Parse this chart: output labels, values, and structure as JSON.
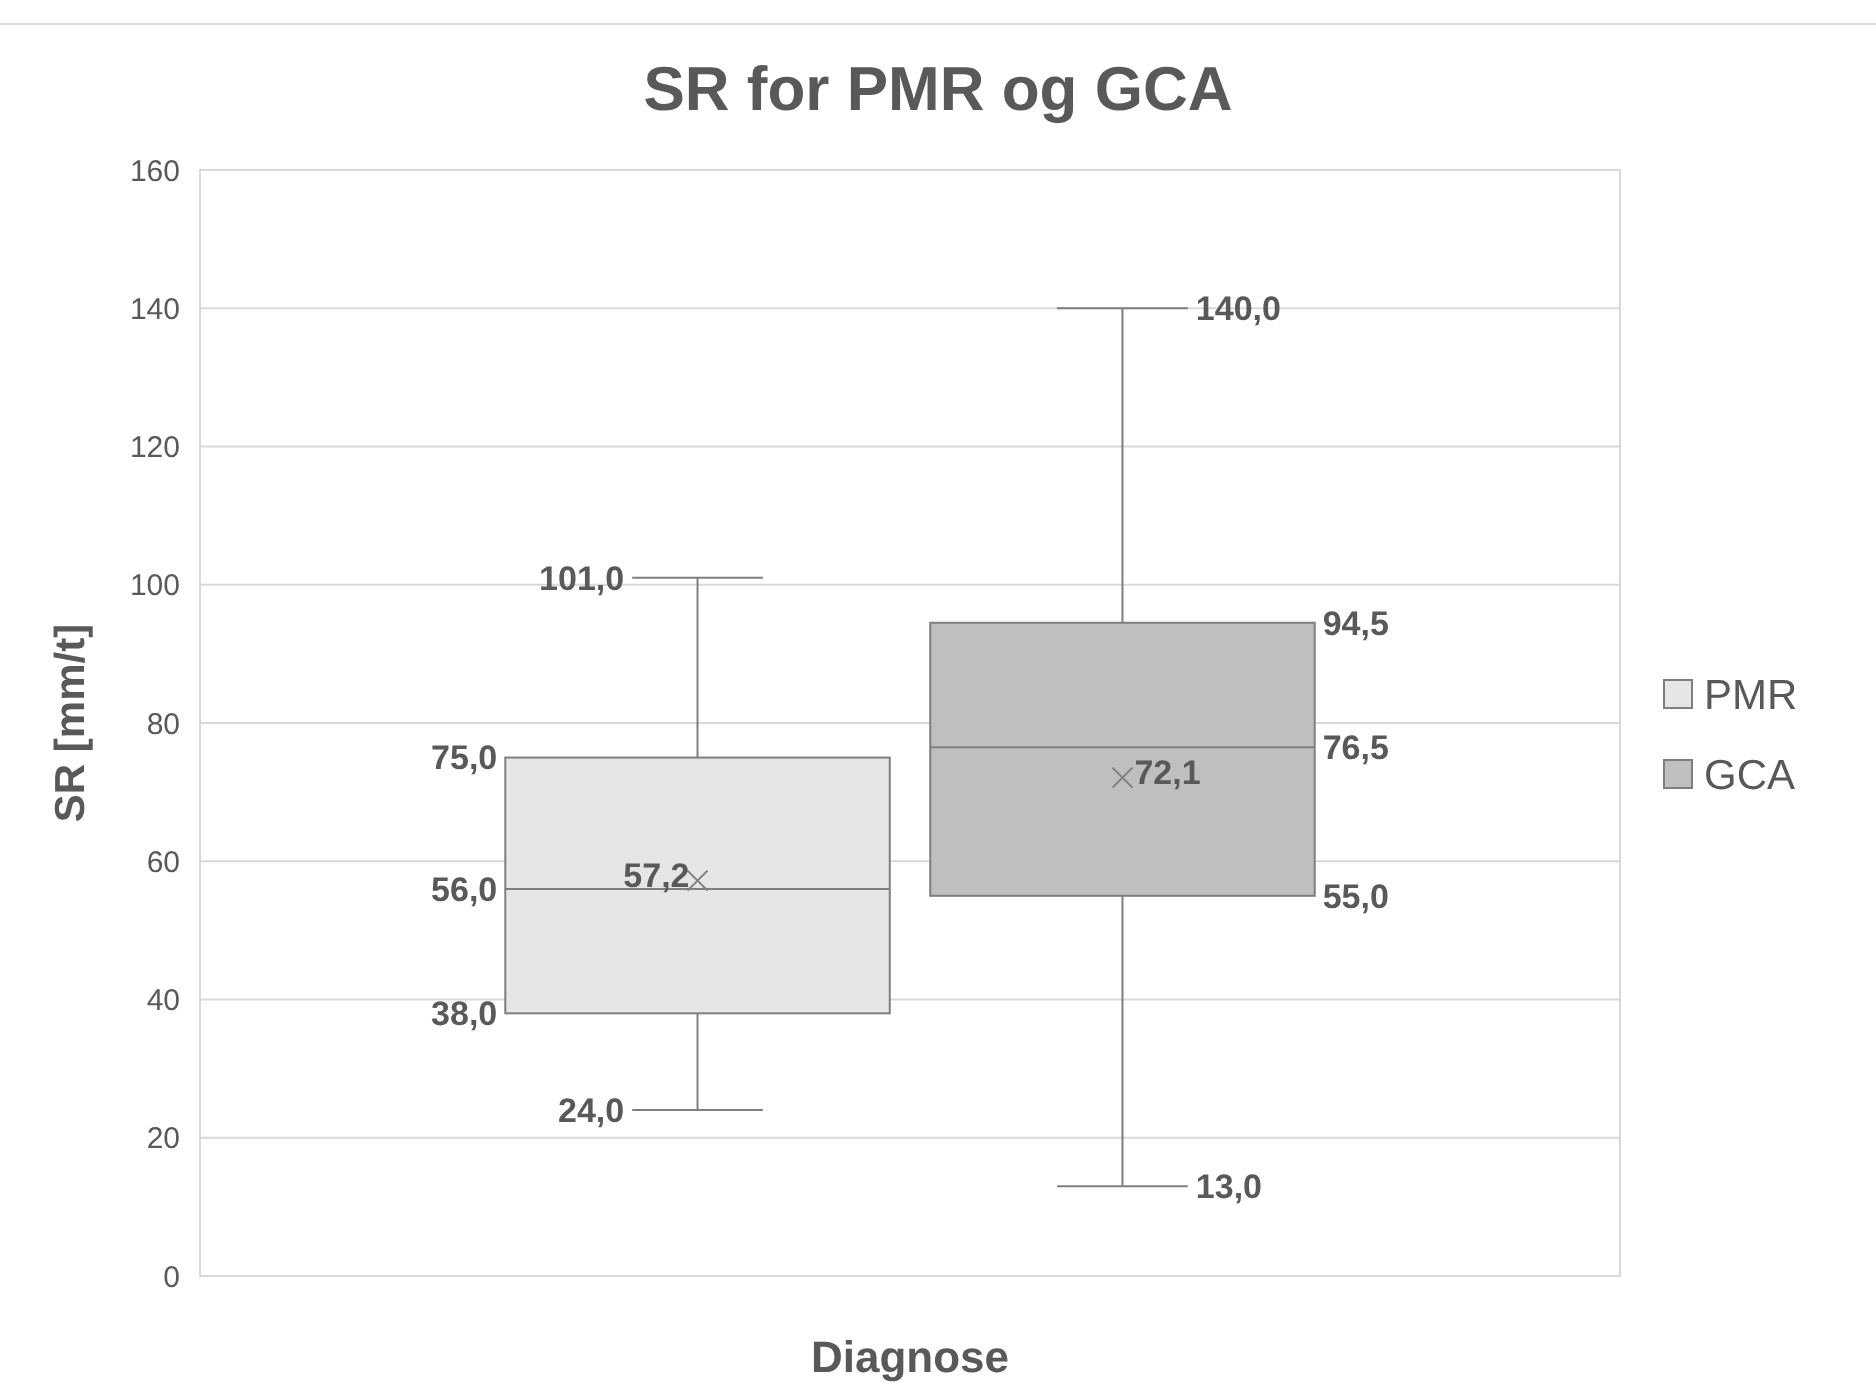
{
  "chart_data": {
    "type": "box",
    "title": "SR for PMR og GCA",
    "xlabel": "Diagnose",
    "ylabel": "SR [mm/t]",
    "categories": [
      null
    ],
    "series": [
      {
        "name": "PMR",
        "color": "#e6e6e6",
        "boxes": [
          {
            "low": 24.0,
            "q1": 38.0,
            "median": 56.0,
            "q3": 75.0,
            "high": 101.0,
            "mean": 57.2
          }
        ]
      },
      {
        "name": "GCA",
        "color": "#bfbfbf",
        "boxes": [
          {
            "low": 13.0,
            "q1": 55.0,
            "median": 76.5,
            "q3": 94.5,
            "high": 140.0,
            "mean": 72.1
          }
        ]
      }
    ],
    "annotations": [
      "101,0",
      "75,0",
      "57,2",
      "56,0",
      "38,0",
      "24,0",
      "140,0",
      "94,5",
      "72,1",
      "76,5",
      "55,0",
      "13,0"
    ],
    "ylim": [
      0,
      160
    ],
    "yticks": [
      0,
      20,
      40,
      60,
      80,
      100,
      120,
      140,
      160
    ],
    "grid": "y",
    "legend": "right",
    "marker": "cross"
  }
}
